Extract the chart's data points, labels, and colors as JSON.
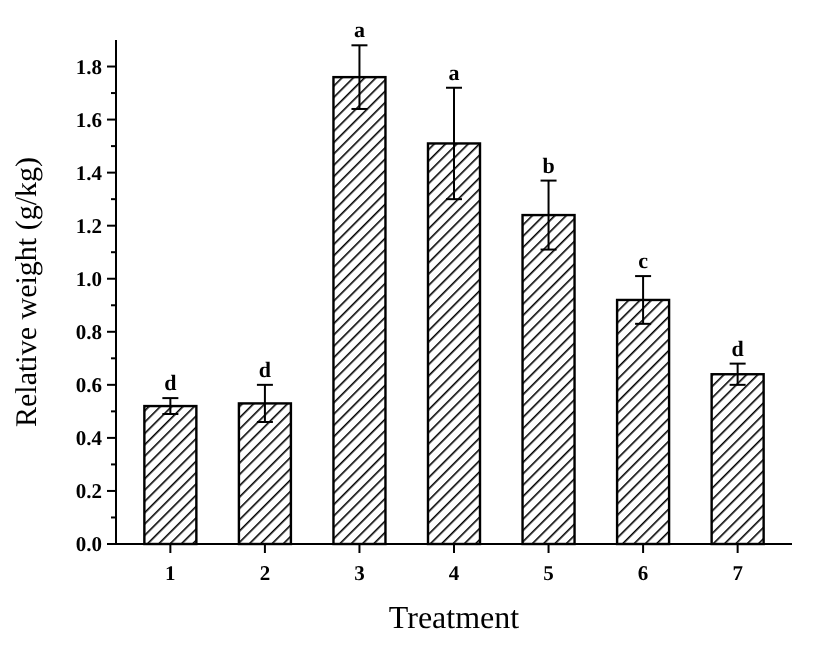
{
  "chart_data": {
    "type": "bar",
    "xlabel": "Treatment",
    "ylabel": "Relative weight (g/kg)",
    "categories": [
      "1",
      "2",
      "3",
      "4",
      "5",
      "6",
      "7"
    ],
    "values": [
      0.52,
      0.53,
      1.76,
      1.51,
      1.24,
      0.92,
      0.64
    ],
    "errors": [
      0.03,
      0.07,
      0.12,
      0.21,
      0.13,
      0.09,
      0.04
    ],
    "color": "#000000",
    "ylim": [
      0,
      1.9
    ],
    "yticks": [
      {
        "value": 0,
        "label": "0.0"
      },
      {
        "value": 0.1,
        "label": null
      },
      {
        "value": 0.2,
        "label": "0.2"
      },
      {
        "value": 0.3,
        "label": null
      },
      {
        "value": 0.4,
        "label": "0.4"
      },
      {
        "value": 0.5,
        "label": null
      },
      {
        "value": 0.6,
        "label": "0.6"
      },
      {
        "value": 0.7,
        "label": null
      },
      {
        "value": 0.8,
        "label": "0.8"
      },
      {
        "value": 0.9,
        "label": null
      },
      {
        "value": 1,
        "label": "1.0"
      },
      {
        "value": 1.1,
        "label": null
      },
      {
        "value": 1.2,
        "label": "1.2"
      },
      {
        "value": 1.3,
        "label": null
      },
      {
        "value": 1.4,
        "label": "1.4"
      },
      {
        "value": 1.5,
        "label": null
      },
      {
        "value": 1.6,
        "label": "1.6"
      },
      {
        "value": 1.7,
        "label": null
      },
      {
        "value": 1.8,
        "label": "1.8"
      }
    ],
    "annotations": [
      {
        "text": "d",
        "x": "1",
        "y": 0.55
      },
      {
        "text": "d",
        "x": "2",
        "y": 0.6
      },
      {
        "text": "a",
        "x": "3",
        "y": 1.88
      },
      {
        "text": "a",
        "x": "4",
        "y": 1.72
      },
      {
        "text": "b",
        "x": "5",
        "y": 1.37
      },
      {
        "text": "c",
        "x": "6",
        "y": 1.01
      },
      {
        "text": "d",
        "x": "7",
        "y": 0.68
      }
    ],
    "grid": false
  }
}
